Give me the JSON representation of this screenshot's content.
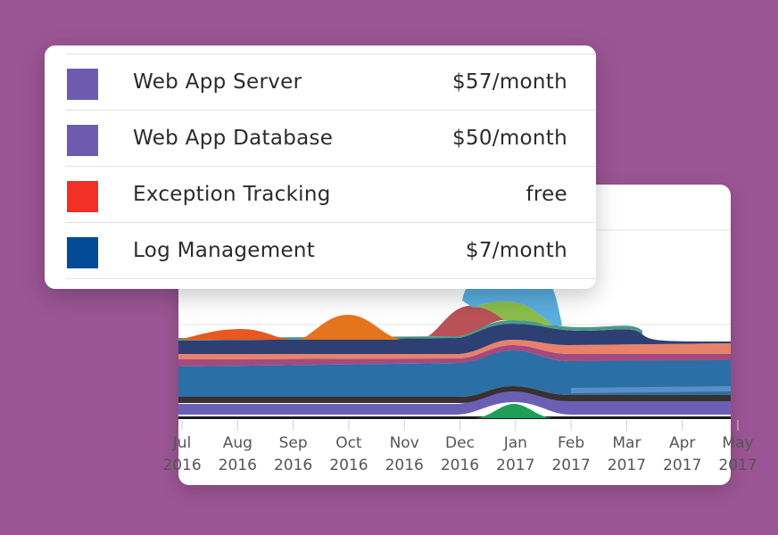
{
  "services": [
    {
      "label": "Web App Server",
      "price": "$57/month",
      "color": "#6e5bb0"
    },
    {
      "label": "Web App Database",
      "price": "$50/month",
      "color": "#6e5bb0"
    },
    {
      "label": "Exception Tracking",
      "price": "free",
      "color": "#f23025"
    },
    {
      "label": "Log Management",
      "price": "$7/month",
      "color": "#014b98"
    }
  ],
  "chart_data": {
    "type": "area",
    "x_ticks": [
      {
        "month": "Jul",
        "year": "2016"
      },
      {
        "month": "Aug",
        "year": "2016"
      },
      {
        "month": "Sep",
        "year": "2016"
      },
      {
        "month": "Oct",
        "year": "2016"
      },
      {
        "month": "Nov",
        "year": "2016"
      },
      {
        "month": "Dec",
        "year": "2016"
      },
      {
        "month": "Jan",
        "year": "2017"
      },
      {
        "month": "Feb",
        "year": "2017"
      },
      {
        "month": "Mar",
        "year": "2017"
      },
      {
        "month": "Apr",
        "year": "2017"
      },
      {
        "month": "May",
        "year": "2017"
      }
    ],
    "grid": true,
    "legend": "none",
    "colors": [
      "#1f9e5a",
      "#111111",
      "#6b5fb5",
      "#3a3a3a",
      "#2a6fa6",
      "#5b7bb0",
      "#a24b80",
      "#e9826a",
      "#2d3f73",
      "#4a9a86",
      "#b85258",
      "#8bbd4c",
      "#5aaee0",
      "#e6741c",
      "#e85820"
    ]
  }
}
